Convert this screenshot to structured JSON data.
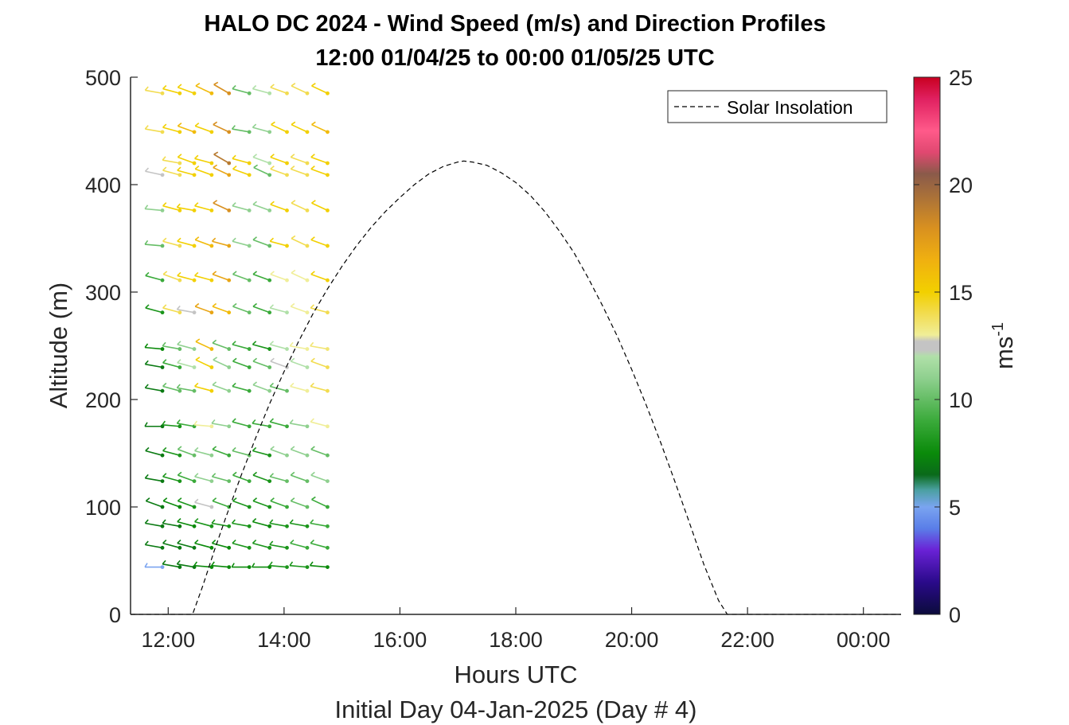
{
  "chart_data": {
    "type": "line",
    "title": "HALO DC 2024 - Wind Speed (m/s) and Direction Profiles",
    "subtitle": "12:00 01/04/25 to 00:00 01/05/25  UTC",
    "xlabel": "Hours UTC",
    "xlabel2": "Initial Day 04-Jan-2025 (Day # 4)",
    "ylabel": "Altitude (m)",
    "xlim": [
      11.35,
      24.65
    ],
    "ylim": [
      0,
      500
    ],
    "x_ticks": [
      12,
      14,
      16,
      18,
      20,
      22,
      24
    ],
    "x_tick_labels": [
      "12:00",
      "14:00",
      "16:00",
      "18:00",
      "20:00",
      "22:00",
      "00:00"
    ],
    "y_ticks": [
      0,
      100,
      200,
      300,
      400,
      500
    ],
    "y_tick_labels": [
      "0",
      "100",
      "200",
      "300",
      "400",
      "500"
    ],
    "legend": {
      "entries": [
        "Solar Insolation"
      ],
      "position": "top-right"
    },
    "colorbar": {
      "label": "ms",
      "label_exponent": "-1",
      "range": [
        0,
        25
      ],
      "ticks": [
        0,
        5,
        10,
        15,
        20,
        25
      ],
      "tick_labels": [
        "0",
        "5",
        "10",
        "15",
        "20",
        "25"
      ],
      "stops": [
        [
          0,
          "#0b0b3b"
        ],
        [
          1.5,
          "#2a0a8a"
        ],
        [
          3,
          "#6a22d6"
        ],
        [
          4,
          "#5a7ee8"
        ],
        [
          5,
          "#7aa4f0"
        ],
        [
          5.8,
          "#4aa0a0"
        ],
        [
          6.5,
          "#0a6a1a"
        ],
        [
          7.5,
          "#0a8a0a"
        ],
        [
          9,
          "#3aaa3a"
        ],
        [
          11,
          "#8fd08f"
        ],
        [
          12,
          "#b0e0a8"
        ],
        [
          12.3,
          "#c4c4c4"
        ],
        [
          12.7,
          "#c4c4c4"
        ],
        [
          13,
          "#f0ee98"
        ],
        [
          14,
          "#f2dc50"
        ],
        [
          15,
          "#f2d000"
        ],
        [
          16.5,
          "#f0b010"
        ],
        [
          18,
          "#d89020"
        ],
        [
          19.5,
          "#a8703a"
        ],
        [
          20.5,
          "#8a5a4a"
        ],
        [
          21.5,
          "#e04870"
        ],
        [
          22.5,
          "#ff5a8a"
        ],
        [
          24,
          "#e02060"
        ],
        [
          25,
          "#c80020"
        ]
      ]
    },
    "series": [
      {
        "name": "Solar Insolation",
        "style": "dashed",
        "color": "#000000",
        "x": [
          11.35,
          12.0,
          12.42,
          12.42,
          12.6,
          12.8,
          13.0,
          13.25,
          13.5,
          13.75,
          14.0,
          14.25,
          14.5,
          14.75,
          15.0,
          15.25,
          15.5,
          15.75,
          16.0,
          16.25,
          16.5,
          16.75,
          17.0,
          17.1,
          17.25,
          17.5,
          17.75,
          18.0,
          18.25,
          18.5,
          18.75,
          19.0,
          19.25,
          19.5,
          19.75,
          20.0,
          20.25,
          20.5,
          20.75,
          21.0,
          21.25,
          21.5,
          21.65,
          21.65,
          22.0,
          23.0,
          24.0,
          24.65
        ],
        "y": [
          0,
          0,
          0,
          0,
          27,
          60,
          91,
          128,
          163,
          196,
          226,
          254,
          280,
          303,
          324,
          343,
          360,
          375,
          388,
          400,
          410,
          417,
          421,
          422,
          421,
          418,
          411,
          402,
          390,
          375,
          357,
          337,
          313,
          287,
          259,
          228,
          195,
          160,
          123,
          85,
          46,
          13,
          0,
          0,
          0,
          0,
          0,
          0
        ]
      }
    ],
    "wind_barbs": {
      "times": [
        11.9,
        12.2,
        12.45,
        12.75,
        13.05,
        13.4,
        13.75,
        14.05,
        14.4,
        14.75
      ],
      "rows": [
        {
          "alt": 485,
          "speeds": [
            14,
            15,
            15,
            16,
            18,
            10,
            12,
            14,
            14,
            15
          ],
          "dirs": [
            80,
            75,
            70,
            65,
            60,
            75,
            75,
            70,
            65,
            65
          ]
        },
        {
          "alt": 449,
          "speeds": [
            14,
            15,
            16,
            15,
            18,
            10,
            11,
            15,
            15,
            16
          ],
          "dirs": [
            80,
            75,
            70,
            70,
            65,
            80,
            75,
            65,
            65,
            65
          ]
        },
        {
          "alt": 420,
          "speeds": [
            null,
            14,
            15,
            15,
            19,
            15,
            12,
            15,
            14,
            15
          ],
          "dirs": [
            0,
            80,
            70,
            75,
            60,
            75,
            70,
            70,
            70,
            70
          ]
        },
        {
          "alt": 409,
          "speeds": [
            12.5,
            14,
            15,
            15,
            17,
            15,
            10,
            14,
            14,
            15
          ],
          "dirs": [
            78,
            75,
            75,
            70,
            65,
            70,
            65,
            70,
            70,
            70
          ]
        },
        {
          "alt": 376,
          "speeds": [
            11,
            15,
            15,
            15,
            18,
            11,
            11,
            15,
            14,
            15
          ],
          "dirs": [
            85,
            75,
            80,
            75,
            65,
            75,
            70,
            70,
            65,
            65
          ]
        },
        {
          "alt": 343,
          "speeds": [
            10,
            14,
            15,
            16,
            17,
            11,
            10,
            15,
            14,
            15
          ],
          "dirs": [
            85,
            75,
            75,
            70,
            75,
            75,
            70,
            75,
            65,
            70
          ]
        },
        {
          "alt": 311,
          "speeds": [
            9,
            14,
            15,
            15,
            17,
            10,
            9,
            13,
            13,
            15
          ],
          "dirs": [
            75,
            70,
            75,
            75,
            70,
            70,
            70,
            70,
            65,
            70
          ]
        },
        {
          "alt": 281,
          "speeds": [
            8,
            14,
            12.5,
            17,
            16,
            10,
            9,
            12,
            13,
            14
          ],
          "dirs": [
            75,
            75,
            80,
            70,
            70,
            70,
            70,
            75,
            70,
            75
          ]
        },
        {
          "alt": 247,
          "speeds": [
            7.5,
            10,
            11,
            16,
            10,
            9,
            8,
            12,
            13,
            13.5
          ],
          "dirs": [
            85,
            80,
            75,
            65,
            70,
            75,
            75,
            75,
            80,
            80
          ]
        },
        {
          "alt": 230,
          "speeds": [
            7,
            9,
            12,
            15,
            11,
            9,
            10,
            12.5,
            12,
            14
          ],
          "dirs": [
            80,
            75,
            75,
            65,
            65,
            70,
            70,
            70,
            70,
            70
          ]
        },
        {
          "alt": 208,
          "speeds": [
            7,
            10,
            10,
            15,
            11,
            9,
            11,
            10,
            13,
            14
          ],
          "dirs": [
            80,
            75,
            80,
            75,
            70,
            75,
            70,
            75,
            75,
            75
          ]
        },
        {
          "alt": 175,
          "speeds": [
            7,
            8,
            9,
            13,
            11,
            9,
            9,
            9,
            11,
            13
          ],
          "dirs": [
            90,
            85,
            80,
            85,
            80,
            75,
            80,
            75,
            80,
            75
          ]
        },
        {
          "alt": 148,
          "speeds": [
            7,
            8,
            10,
            11,
            9,
            10,
            8,
            11,
            11,
            10
          ],
          "dirs": [
            75,
            75,
            70,
            75,
            70,
            75,
            75,
            70,
            70,
            70
          ]
        },
        {
          "alt": 124,
          "speeds": [
            7,
            8,
            9,
            11,
            10,
            9,
            8,
            10,
            10,
            11
          ],
          "dirs": [
            80,
            75,
            70,
            75,
            75,
            70,
            70,
            75,
            70,
            70
          ]
        },
        {
          "alt": 100,
          "speeds": [
            7,
            7.5,
            8,
            12.5,
            9,
            8,
            8,
            9,
            10,
            9
          ],
          "dirs": [
            70,
            70,
            70,
            75,
            70,
            70,
            70,
            70,
            70,
            65
          ]
        },
        {
          "alt": 82,
          "speeds": [
            7,
            7,
            7.5,
            8,
            8,
            8,
            7.5,
            8,
            8,
            9
          ],
          "dirs": [
            80,
            80,
            75,
            75,
            80,
            80,
            75,
            80,
            80,
            80
          ]
        },
        {
          "alt": 62,
          "speeds": [
            7,
            7,
            7,
            7.5,
            7.5,
            8,
            8,
            8,
            9,
            9
          ],
          "dirs": [
            80,
            75,
            75,
            75,
            75,
            75,
            75,
            80,
            75,
            75
          ]
        },
        {
          "alt": 44,
          "speeds": [
            5,
            7,
            7,
            7.5,
            7.5,
            7.5,
            7.5,
            8,
            8,
            7.5
          ],
          "dirs": [
            90,
            80,
            80,
            85,
            85,
            90,
            90,
            85,
            85,
            85
          ]
        }
      ]
    }
  }
}
